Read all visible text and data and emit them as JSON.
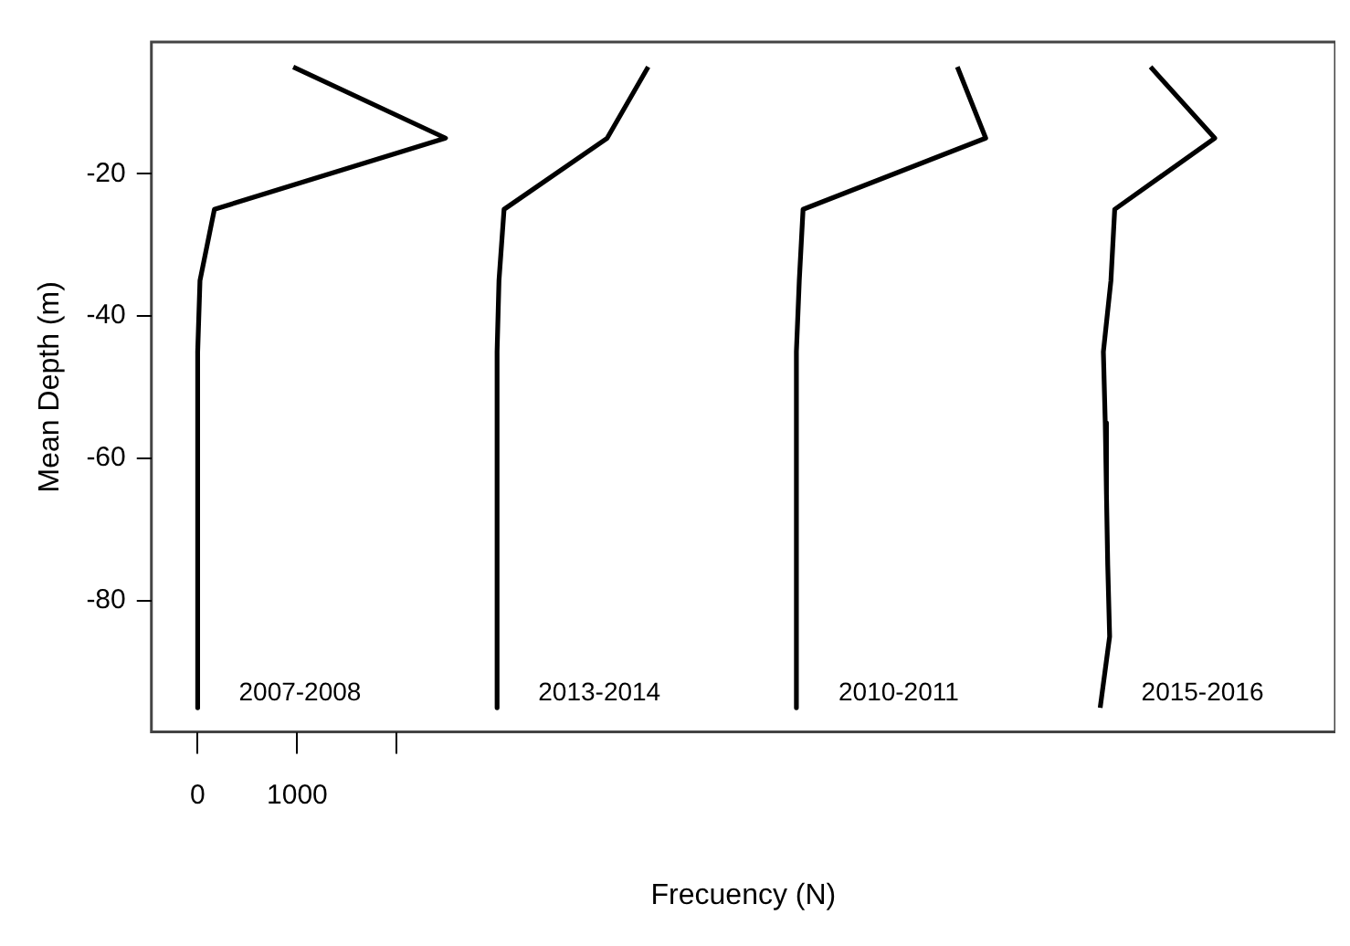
{
  "chart_data": {
    "type": "line",
    "xlabel": "Frecuency (N)",
    "ylabel": "Mean Depth (m)",
    "xlim": [
      -465,
      11430
    ],
    "xticks": [
      0,
      1000,
      {
        "value": 2000,
        "label": null
      }
    ],
    "ylim": [
      -98.4,
      -1.5
    ],
    "yticks": [
      -20,
      -40,
      -60,
      -80
    ],
    "grid": false,
    "legend": false,
    "marker": "none",
    "line_style": "solid",
    "series": [
      {
        "name": "2007-2008",
        "color": "#000000",
        "x": [
          960,
          2490,
          168,
          23,
          0,
          0,
          0,
          0,
          0,
          0
        ],
        "values": [
          -5,
          -15,
          -25,
          -35,
          -45,
          -55,
          -65,
          -75,
          -85,
          -95
        ]
      },
      {
        "name": "2013-2014",
        "color": "#000000",
        "x": [
          4526,
          4114,
          3078,
          3027,
          3008,
          3008,
          3008,
          3008,
          3008,
          3008
        ],
        "values": [
          -5,
          -15,
          -25,
          -35,
          -45,
          -55,
          -65,
          -75,
          -85,
          -95
        ]
      },
      {
        "name": "2010-2011",
        "color": "#000000",
        "x": [
          7632,
          7917,
          6082,
          6044,
          6015,
          6015,
          6015,
          6015,
          6015,
          6015
        ],
        "values": [
          -5,
          -15,
          -25,
          -35,
          -45,
          -55,
          -65,
          -75,
          -85,
          -95
        ]
      },
      {
        "name": "2015-2016",
        "color": "#000000",
        "x": [
          9573,
          10218,
          9213,
          9175,
          9099,
          9118,
          9130,
          9143,
          9162,
          9067
        ],
        "values": [
          -5,
          -15,
          -25,
          -35,
          -45,
          -55,
          -65,
          -75,
          -85,
          -95
        ]
      }
    ]
  }
}
